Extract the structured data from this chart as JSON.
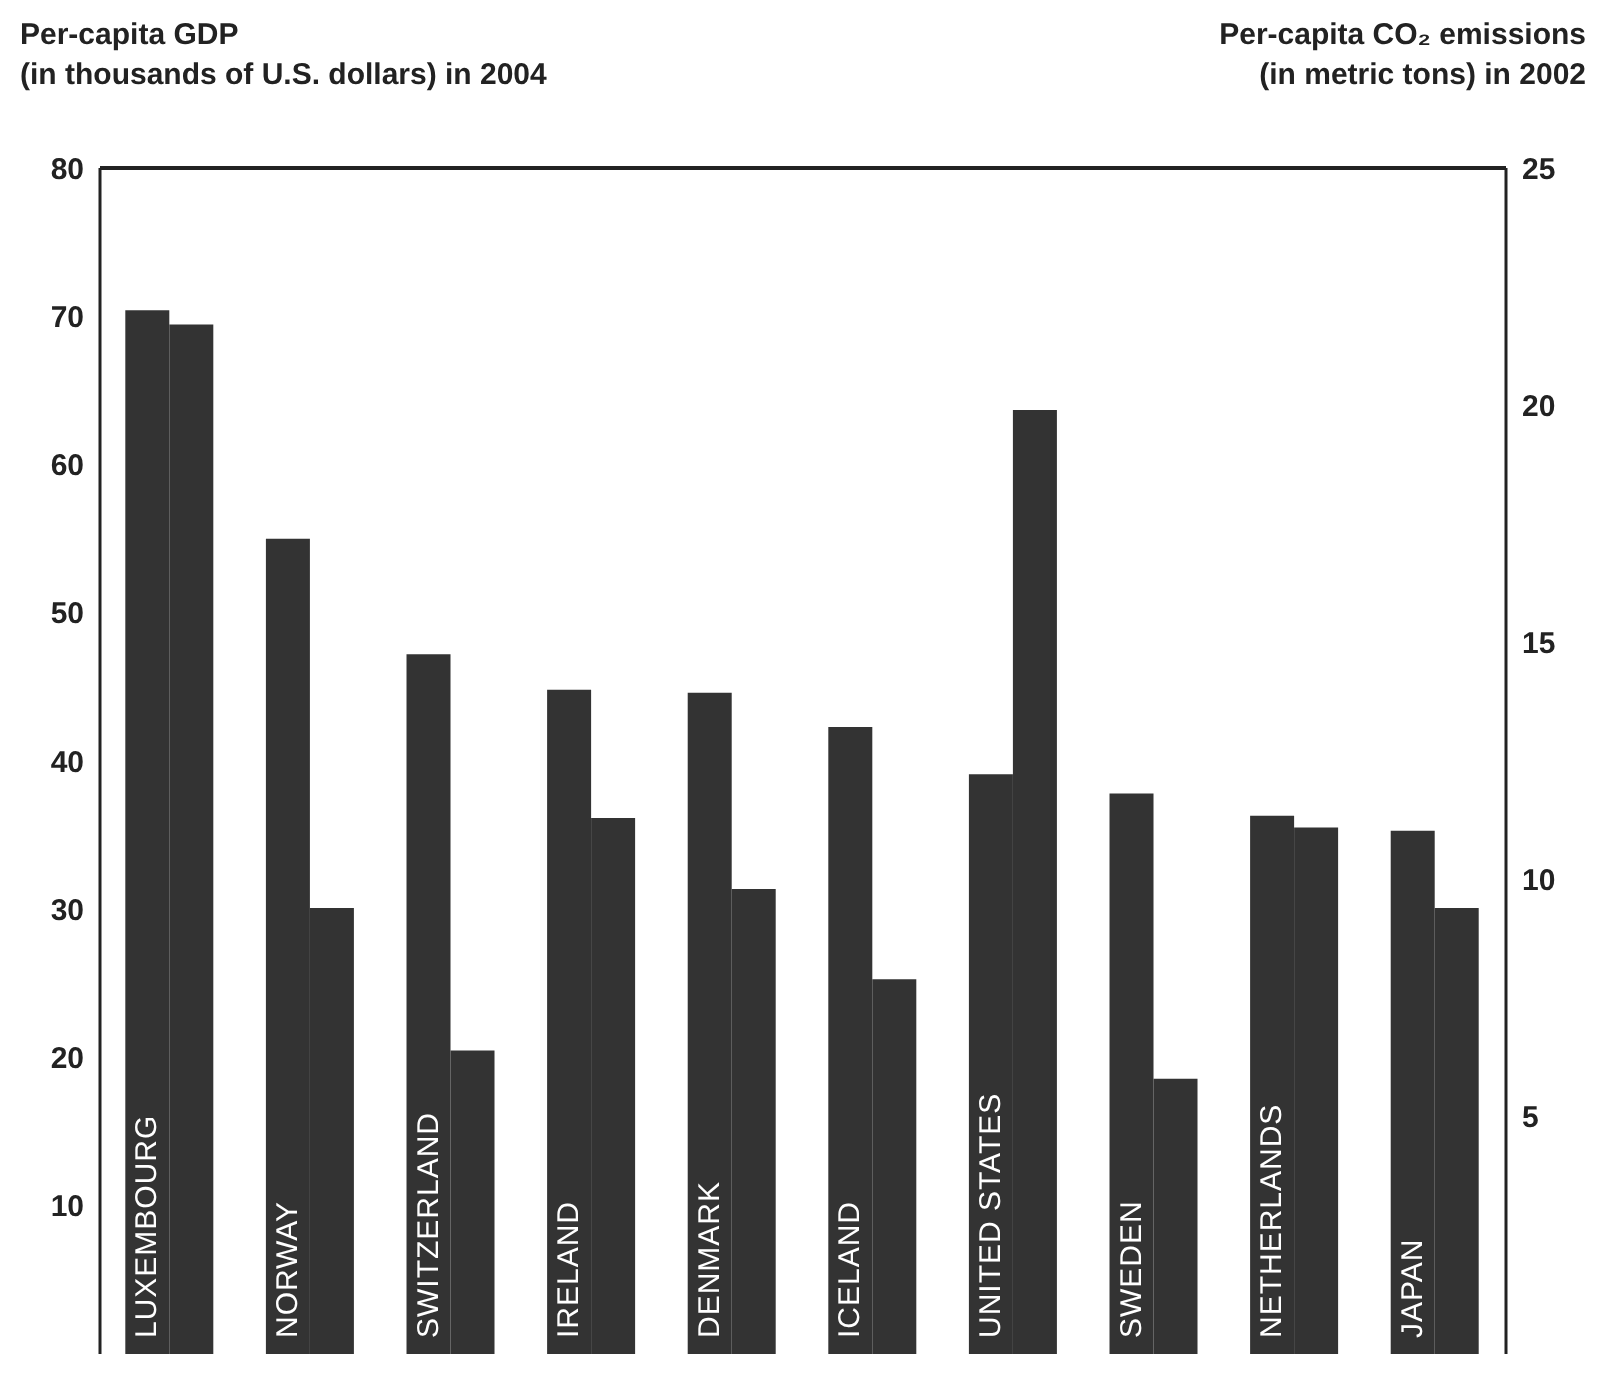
{
  "chart_data": {
    "type": "bar",
    "ylabel": "Per-capita GDP\n(in thousands of U.S. dollars) in 2004",
    "y2label": "Per-capita CO₂ emissions\n(in metric tons) in 2002",
    "categories": [
      "LUXEMBOURG",
      "NORWAY",
      "SWITZERLAND",
      "IRELAND",
      "DENMARK",
      "ICELAND",
      "UNITED STATES",
      "SWEDEN",
      "NETHERLANDS",
      "JAPAN"
    ],
    "series": [
      {
        "color": "#333333",
        "values": [
          70.4,
          55.0,
          47.2,
          44.8,
          44.6,
          42.3,
          39.1,
          37.8,
          36.3,
          35.3
        ]
      },
      {
        "color": "#333333",
        "axis": "y2",
        "values": [
          21.7,
          9.4,
          6.4,
          11.3,
          9.8,
          7.9,
          19.9,
          5.8,
          11.1,
          9.4
        ]
      }
    ],
    "ylim": [
      0,
      80
    ],
    "yticks": [
      10,
      20,
      30,
      40,
      50,
      60,
      70,
      80
    ],
    "y2lim": [
      0,
      25
    ],
    "y2ticks": [
      5,
      10,
      15,
      20,
      25
    ],
    "grid": false,
    "legend": false
  }
}
